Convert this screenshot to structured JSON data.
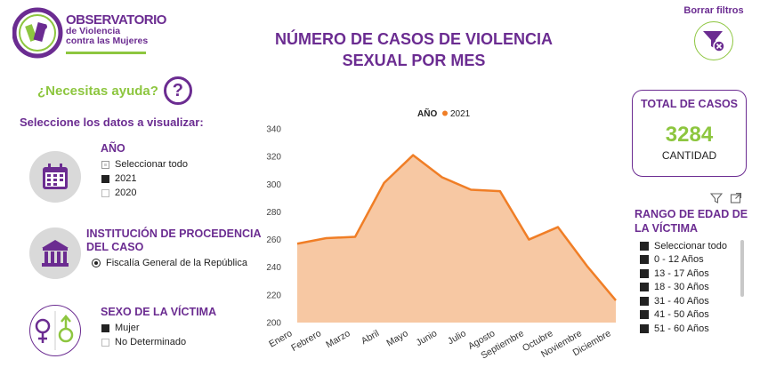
{
  "logo": {
    "line1": "OBSERVATORIO",
    "line2": "de Violencia contra las Mujeres"
  },
  "header": {
    "title_line1": "NÚMERO DE CASOS DE VIOLENCIA",
    "title_line2": "SEXUAL POR MES"
  },
  "clear_filters": {
    "label": "Borrar filtros"
  },
  "help": {
    "label": "¿Necesitas ayuda?",
    "symbol": "?"
  },
  "select_label": "Seleccione los datos a visualizar:",
  "filters": {
    "year": {
      "title": "AÑO",
      "items": [
        {
          "label": "Seleccionar todo",
          "state": "partial"
        },
        {
          "label": "2021",
          "state": "checked"
        },
        {
          "label": "2020",
          "state": "unchecked"
        }
      ]
    },
    "institution": {
      "title_line1": "INSTITUCIÓN DE PROCEDENCIA",
      "title_line2": "DEL CASO",
      "selected": "Fiscalía General de la República"
    },
    "sex": {
      "title": "SEXO DE LA VÍCTIMA",
      "items": [
        {
          "label": "Mujer",
          "state": "checked"
        },
        {
          "label": "No Determinado",
          "state": "unchecked"
        }
      ]
    }
  },
  "kpi": {
    "title": "TOTAL DE CASOS",
    "value": "3284",
    "subtitle": "CANTIDAD"
  },
  "age_filter": {
    "title": "RANGO DE EDAD DE LA VÍCTIMA",
    "items": [
      "Seleccionar todo",
      "0 - 12 Años",
      "13 - 17 Años",
      "18 - 30 Años",
      "31 - 40 Años",
      "41 - 50 Años",
      "51 - 60 Años"
    ]
  },
  "colors": {
    "purple": "#6b2c91",
    "green": "#8dc63f",
    "line": "#f07e26",
    "fill": "#f7c8a3"
  },
  "chart_data": {
    "type": "area",
    "legend_title": "AÑO",
    "legend_placement": "top-center",
    "categories": [
      "Enero",
      "Febrero",
      "Marzo",
      "Abril",
      "Mayo",
      "Junio",
      "Julio",
      "Agosto",
      "Septiembre",
      "Octubre",
      "Noviembre",
      "Diciembre"
    ],
    "series": [
      {
        "name": "2021",
        "values": [
          257,
          261,
          262,
          301,
          321,
          305,
          296,
          295,
          260,
          269,
          241,
          216
        ]
      }
    ],
    "y_ticks": [
      200,
      220,
      240,
      260,
      280,
      300,
      320,
      340
    ],
    "ylim": [
      200,
      340
    ],
    "grid": false
  }
}
